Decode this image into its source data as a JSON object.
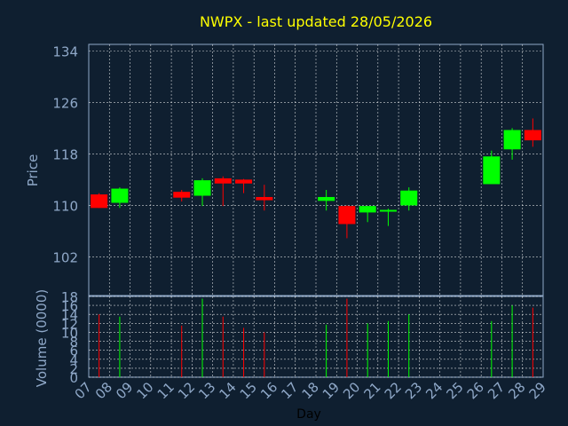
{
  "chart_data": {
    "type": "candlestick",
    "title": "NWPX - last updated 28/05/2026",
    "ylabel_price": "Price",
    "ylabel_volume": "Volume (0000)",
    "xlabel": "Day",
    "x_ticks": [
      "07",
      "08",
      "09",
      "10",
      "11",
      "12",
      "13",
      "14",
      "15",
      "16",
      "17",
      "18",
      "19",
      "20",
      "21",
      "22",
      "23",
      "24",
      "25",
      "26",
      "27",
      "28",
      "29"
    ],
    "price_yticks": [
      "134",
      "126",
      "118",
      "110",
      "102"
    ],
    "price_ylim": [
      96,
      135
    ],
    "volume_yticks": [
      "18",
      "16",
      "14",
      "12",
      "10",
      "8",
      "6",
      "4",
      "2",
      "0"
    ],
    "volume_ylim": [
      0,
      18
    ],
    "grid": true,
    "colors": {
      "up": "#00ff00",
      "down": "#ff0000",
      "grid": "#ffffff",
      "axis": "#8fa8c8",
      "title": "#ffff00",
      "background": "#0f1f30",
      "plot": "#0f1f30"
    },
    "candles": [
      {
        "day": "07",
        "open": 111.7,
        "high": 111.9,
        "low": 109.6,
        "close": 109.6,
        "volume": 14.0
      },
      {
        "day": "08",
        "open": 110.4,
        "high": 112.8,
        "low": 109.6,
        "close": 112.6,
        "volume": 13.5
      },
      {
        "day": "11",
        "open": 112.1,
        "high": 112.4,
        "low": 110.6,
        "close": 111.2,
        "volume": 11.5
      },
      {
        "day": "12",
        "open": 111.5,
        "high": 114.2,
        "low": 109.9,
        "close": 113.9,
        "volume": 17.5
      },
      {
        "day": "13",
        "open": 114.2,
        "high": 114.5,
        "low": 109.9,
        "close": 113.4,
        "volume": 13.5
      },
      {
        "day": "14",
        "open": 114.0,
        "high": 114.1,
        "low": 111.9,
        "close": 113.4,
        "volume": 11.0
      },
      {
        "day": "15",
        "open": 111.3,
        "high": 113.2,
        "low": 109.2,
        "close": 110.8,
        "volume": 10.0
      },
      {
        "day": "18",
        "open": 110.7,
        "high": 112.4,
        "low": 109.2,
        "close": 111.3,
        "volume": 11.7
      },
      {
        "day": "19",
        "open": 109.9,
        "high": 110.0,
        "low": 104.9,
        "close": 107.1,
        "volume": 17.5
      },
      {
        "day": "20",
        "open": 108.9,
        "high": 109.9,
        "low": 107.4,
        "close": 109.9,
        "volume": 12.0
      },
      {
        "day": "21",
        "open": 109.1,
        "high": 109.5,
        "low": 106.8,
        "close": 109.3,
        "volume": 12.5
      },
      {
        "day": "22",
        "open": 110.0,
        "high": 112.8,
        "low": 109.2,
        "close": 112.3,
        "volume": 14.0
      },
      {
        "day": "26",
        "open": 113.3,
        "high": 118.5,
        "low": 113.3,
        "close": 117.6,
        "volume": 12.5
      },
      {
        "day": "27",
        "open": 118.7,
        "high": 122.0,
        "low": 117.1,
        "close": 121.7,
        "volume": 16.0
      },
      {
        "day": "28",
        "open": 121.7,
        "high": 123.5,
        "low": 119.1,
        "close": 120.1,
        "volume": 15.5
      }
    ]
  }
}
